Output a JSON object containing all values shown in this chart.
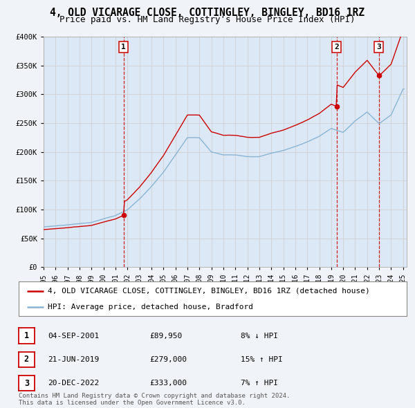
{
  "title": "4, OLD VICARAGE CLOSE, COTTINGLEY, BINGLEY, BD16 1RZ",
  "subtitle": "Price paid vs. HM Land Registry's House Price Index (HPI)",
  "hpi_label": "HPI: Average price, detached house, Bradford",
  "property_label": "4, OLD VICARAGE CLOSE, COTTINGLEY, BINGLEY, BD16 1RZ (detached house)",
  "hpi_color": "#8ab4d4",
  "property_color": "#cc0000",
  "grid_color": "#cccccc",
  "plot_bg_color": "#dce8f5",
  "fig_bg_color": "#f0f4f8",
  "sale_points": [
    {
      "year": 2001.67,
      "price": 89950,
      "label": "1"
    },
    {
      "year": 2019.47,
      "price": 279000,
      "label": "2"
    },
    {
      "year": 2022.97,
      "price": 333000,
      "label": "3"
    }
  ],
  "yticks": [
    0,
    50000,
    100000,
    150000,
    200000,
    250000,
    300000,
    350000,
    400000
  ],
  "ytick_labels": [
    "£0",
    "£50K",
    "£100K",
    "£150K",
    "£200K",
    "£250K",
    "£300K",
    "£350K",
    "£400K"
  ],
  "table_entries": [
    {
      "num": "1",
      "date": "04-SEP-2001",
      "price": "£89,950",
      "hpi_diff": "8% ↓ HPI"
    },
    {
      "num": "2",
      "date": "21-JUN-2019",
      "price": "£279,000",
      "hpi_diff": "15% ↑ HPI"
    },
    {
      "num": "3",
      "date": "20-DEC-2022",
      "price": "£333,000",
      "hpi_diff": "7% ↑ HPI"
    }
  ],
  "footer": "Contains HM Land Registry data © Crown copyright and database right 2024.\nThis data is licensed under the Open Government Licence v3.0."
}
